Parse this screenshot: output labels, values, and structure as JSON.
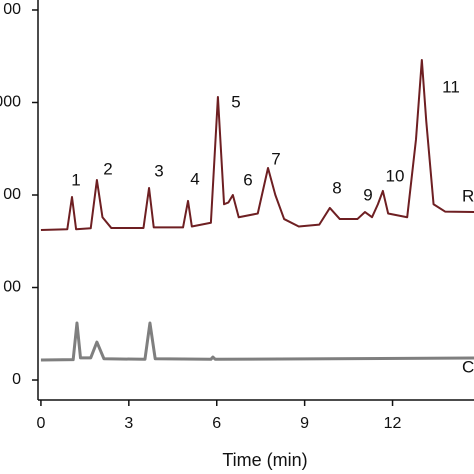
{
  "chart_data": {
    "type": "line",
    "xlabel": "Time (min)",
    "xlim": [
      -0.1,
      14.78
    ],
    "xticks": [
      0,
      3,
      6,
      9,
      12
    ],
    "ylim": [
      -108,
      2054
    ],
    "yticks": [
      {
        "value": 0,
        "label": "0"
      },
      {
        "value": 500,
        "label": "00"
      },
      {
        "value": 1000,
        "label": "00"
      },
      {
        "value": 1500,
        "label": "000"
      },
      {
        "value": 2000,
        "label": "00"
      }
    ],
    "grid": false,
    "annotations": [
      "1",
      "2",
      "3",
      "4",
      "5",
      "6",
      "7",
      "8",
      "9",
      "10",
      "11"
    ],
    "series": [
      {
        "name": "R",
        "color": "#6e1f22",
        "x": [
          0,
          0.9,
          1.06,
          1.2,
          1.7,
          1.91,
          2.1,
          2.4,
          3.5,
          3.69,
          3.85,
          4.85,
          5.02,
          5.15,
          5.8,
          6.04,
          6.25,
          6.4,
          6.55,
          6.75,
          7.4,
          7.75,
          8.0,
          8.3,
          8.8,
          9.5,
          9.86,
          10.2,
          10.8,
          11.06,
          11.3,
          11.5,
          11.67,
          11.85,
          12.5,
          12.8,
          13.0,
          13.15,
          13.4,
          13.8,
          14.78
        ],
        "values": [
          811,
          815,
          989,
          815,
          820,
          1081,
          880,
          822,
          822,
          1038,
          825,
          825,
          968,
          830,
          850,
          1530,
          950,
          960,
          1000,
          880,
          900,
          1146,
          1000,
          870,
          830,
          840,
          930,
          870,
          870,
          908,
          880,
          950,
          1022,
          900,
          880,
          1300,
          1730,
          1400,
          950,
          910,
          908
        ]
      },
      {
        "name": "C",
        "color": "#7f7f7f",
        "x": [
          0,
          1.1,
          1.23,
          1.35,
          1.7,
          1.91,
          2.15,
          3.55,
          3.72,
          3.9,
          5.8,
          5.87,
          5.95,
          14.78
        ],
        "values": [
          108,
          110,
          308,
          120,
          120,
          205,
          115,
          112,
          308,
          115,
          112,
          124,
          112,
          119
        ]
      }
    ]
  }
}
